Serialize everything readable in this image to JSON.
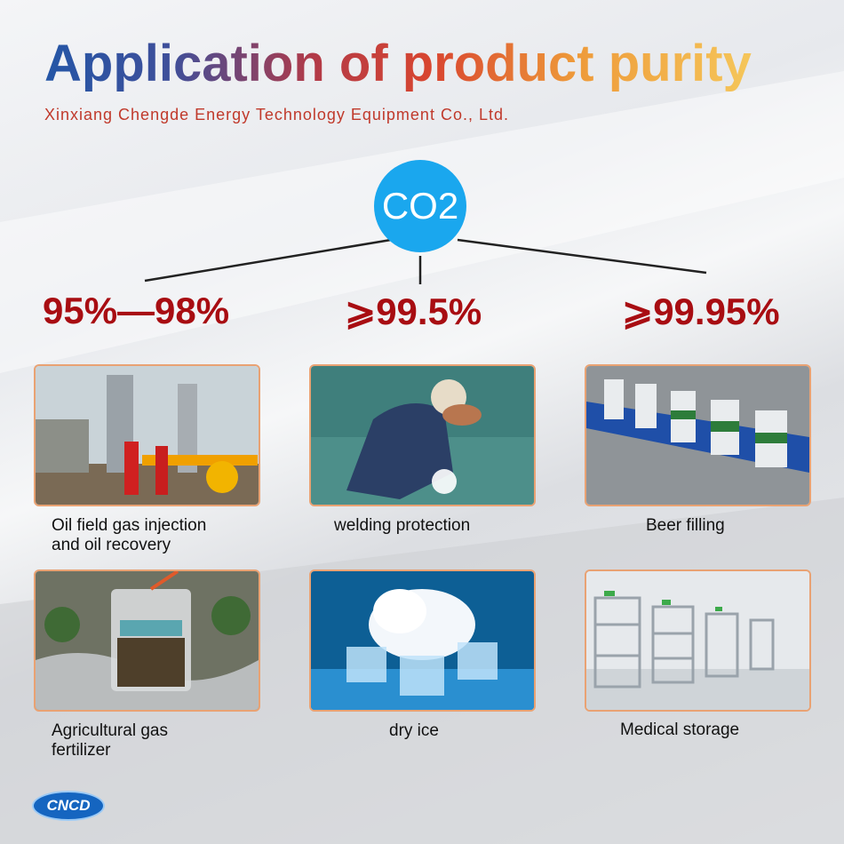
{
  "header": {
    "title": "Application of product purity",
    "subtitle": "Xinxiang Chengde Energy Technology Equipment Co., Ltd."
  },
  "center_node": {
    "label": "CO2"
  },
  "purity_levels": [
    "95%—98%",
    "⩾99.5%",
    "⩾99.95%"
  ],
  "items": [
    {
      "lines": [
        "Oil field gas injection",
        "and oil recovery"
      ]
    },
    {
      "lines": [
        "welding protection"
      ]
    },
    {
      "lines": [
        "Beer filling"
      ]
    },
    {
      "lines": [
        "Agricultural gas",
        "fertilizer"
      ]
    },
    {
      "lines": [
        "dry ice"
      ]
    },
    {
      "lines": [
        "Medical storage"
      ]
    }
  ],
  "logo": "CNCD"
}
